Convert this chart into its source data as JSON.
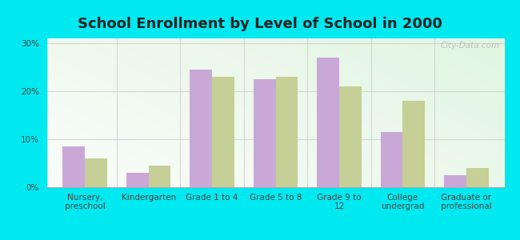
{
  "title": "School Enrollment by Level of School in 2000",
  "categories": [
    "Nursery,\npreschool",
    "Kindergarten",
    "Grade 1 to 4",
    "Grade 5 to 8",
    "Grade 9 to\n12",
    "College\nundergrad",
    "Graduate or\nprofessional"
  ],
  "andover": [
    8.5,
    3.0,
    24.5,
    22.5,
    27.0,
    11.5,
    2.5
  ],
  "nh": [
    6.0,
    4.5,
    23.0,
    23.0,
    21.0,
    18.0,
    4.0
  ],
  "andover_color": "#c9a8d8",
  "nh_color": "#c5cf96",
  "background_outer": "#00e8f0",
  "background_inner": "#d8f0d8",
  "yticks": [
    0,
    10,
    20,
    30
  ],
  "ylim": [
    0,
    31
  ],
  "title_fontsize": 13,
  "tick_fontsize": 7.5,
  "legend_fontsize": 8.5,
  "bar_width": 0.35,
  "watermark": "City-Data.com"
}
